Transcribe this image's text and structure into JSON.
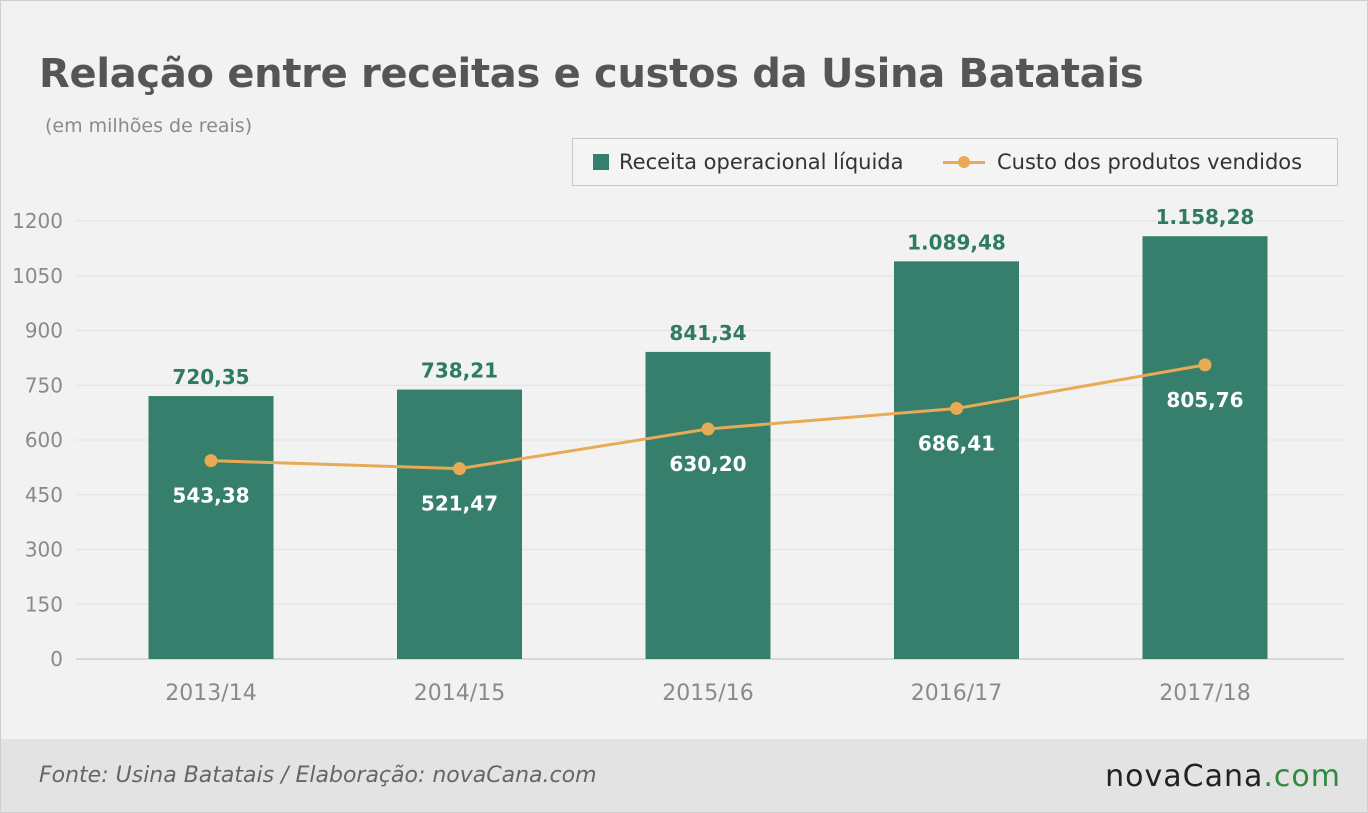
{
  "title": "Relação entre receitas e custos da Usina Batatais",
  "subtitle": "(em milhões de reais)",
  "legend": {
    "bar_label": "Receita operacional líquida",
    "line_label": "Custo dos produtos vendidos"
  },
  "footer": {
    "source": "Fonte: Usina Batatais / Elaboração: novaCana.com",
    "logo_main": "novaCana",
    "logo_suffix": ".com"
  },
  "colors": {
    "bar": "#367f6c",
    "line": "#e9aa55",
    "bar_label": "#2f7a62",
    "line_label": "#ffffff",
    "axis_text": "#8a8a8a",
    "grid": "#e2e2e2"
  },
  "chart_data": {
    "type": "bar",
    "title": "Relação entre receitas e custos da Usina Batatais",
    "subtitle": "(em milhões de reais)",
    "categories": [
      "2013/14",
      "2014/15",
      "2015/16",
      "2016/17",
      "2017/18"
    ],
    "series": [
      {
        "name": "Receita operacional líquida",
        "type": "bar",
        "values": [
          720.35,
          738.21,
          841.34,
          1089.48,
          1158.28
        ],
        "labels": [
          "720,35",
          "738,21",
          "841,34",
          "1.089,48",
          "1.158,28"
        ]
      },
      {
        "name": "Custo dos produtos vendidos",
        "type": "line",
        "values": [
          543.38,
          521.47,
          630.2,
          686.41,
          805.76
        ],
        "labels": [
          "543,38",
          "521,47",
          "630,20",
          "686,41",
          "805,76"
        ]
      }
    ],
    "ylim": [
      0,
      1200
    ],
    "yticks": [
      0,
      150,
      300,
      450,
      600,
      750,
      900,
      1050,
      1200
    ],
    "ytick_labels": [
      "0",
      "150",
      "300",
      "450",
      "600",
      "750",
      "900",
      "1050",
      "1200"
    ],
    "grid": true,
    "legend_position": "top-right"
  }
}
